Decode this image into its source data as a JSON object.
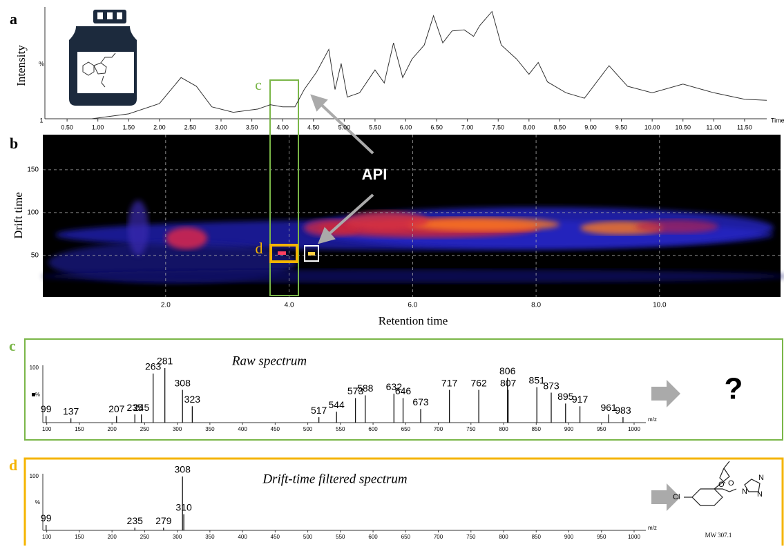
{
  "panel_a": {
    "label": "a",
    "y_label": "Intensity",
    "y_unit": "%",
    "y_bottom": "1",
    "x_unit": "Time",
    "xlim": [
      0.14,
      11.86
    ],
    "ylim": [
      0,
      100
    ],
    "xticks": [
      {
        "value": 0.5,
        "label": "0.50"
      },
      {
        "value": 1,
        "label": "1.00"
      },
      {
        "value": 1.5,
        "label": "1.50"
      },
      {
        "value": 2,
        "label": "2.00"
      },
      {
        "value": 2.5,
        "label": "2.50"
      },
      {
        "value": 3,
        "label": "3.00"
      },
      {
        "value": 3.5,
        "label": "3.50"
      },
      {
        "value": 4,
        "label": "4.00"
      },
      {
        "value": 4.5,
        "label": "4.50"
      },
      {
        "value": 5,
        "label": "5.00"
      },
      {
        "value": 5.5,
        "label": "5.50"
      },
      {
        "value": 6,
        "label": "6.00"
      },
      {
        "value": 6.5,
        "label": "6.50"
      },
      {
        "value": 7,
        "label": "7.00"
      },
      {
        "value": 7.5,
        "label": "7.50"
      },
      {
        "value": 8,
        "label": "8.00"
      },
      {
        "value": 8.5,
        "label": "8.50"
      },
      {
        "value": 9,
        "label": "9.00"
      },
      {
        "value": 9.5,
        "label": "9.50"
      },
      {
        "value": 10,
        "label": "10.00"
      },
      {
        "value": 10.5,
        "label": "10.50"
      },
      {
        "value": 11,
        "label": "11.00"
      },
      {
        "value": 11.5,
        "label": "11.50"
      }
    ],
    "x": [
      0.9,
      1.5,
      2.0,
      2.35,
      2.6,
      2.85,
      3.2,
      3.6,
      3.8,
      4.0,
      4.2,
      4.35,
      4.55,
      4.75,
      4.85,
      4.95,
      5.05,
      5.25,
      5.5,
      5.65,
      5.8,
      5.95,
      6.1,
      6.3,
      6.45,
      6.6,
      6.75,
      6.95,
      7.1,
      7.2,
      7.4,
      7.55,
      7.8,
      8.0,
      8.15,
      8.3,
      8.6,
      8.9,
      9.3,
      9.6,
      10.0,
      10.5,
      11.0,
      11.5,
      11.86
    ],
    "values": [
      0,
      4.5,
      14,
      38,
      30,
      11,
      6,
      9,
      13,
      11,
      11,
      27,
      43,
      64,
      27,
      51,
      20,
      24,
      45,
      33,
      70,
      38,
      55,
      68,
      95,
      70,
      81,
      82,
      76,
      86,
      99,
      68,
      55,
      41,
      52,
      34,
      24,
      19,
      49,
      30,
      24,
      32,
      24,
      18,
      17
    ]
  },
  "panel_b": {
    "label": "b",
    "y_label": "Drift time",
    "x_label": "Retention time",
    "xlim": [
      0.01,
      11.96
    ],
    "ylim": [
      1.6,
      191
    ],
    "xticks": [
      {
        "value": 2,
        "label": "2.0"
      },
      {
        "value": 4,
        "label": "4.0"
      },
      {
        "value": 6,
        "label": "6.0"
      },
      {
        "value": 8,
        "label": "8.0"
      },
      {
        "value": 10,
        "label": "10.0"
      }
    ],
    "yticks": [
      50,
      100,
      150
    ],
    "annotation": "API",
    "box_c_label": "c",
    "box_d_label": "d"
  },
  "panel_c": {
    "label": "c",
    "title": "Raw spectrum",
    "x_unit": "m/z",
    "y_top": "100",
    "y_unit": "%",
    "unknown": "?",
    "xlim": [
      94,
      1018
    ],
    "ylim": [
      0,
      100
    ],
    "xticks": [
      100,
      150,
      200,
      250,
      300,
      350,
      400,
      450,
      500,
      550,
      600,
      650,
      700,
      750,
      800,
      850,
      900,
      950,
      1000
    ],
    "mz": [
      99,
      137,
      207,
      235,
      245,
      263,
      281,
      308,
      323,
      517,
      544,
      573,
      588,
      632,
      646,
      673,
      717,
      762,
      806,
      807,
      851,
      873,
      895,
      917,
      961,
      983
    ],
    "intensity": [
      12,
      8,
      12,
      15,
      15,
      90,
      100,
      60,
      30,
      10,
      20,
      45,
      50,
      53,
      45,
      25,
      60,
      60,
      82,
      60,
      65,
      55,
      35,
      30,
      15,
      10
    ]
  },
  "panel_d": {
    "label": "d",
    "title": "Drift-time filtered spectrum",
    "x_unit": "m/z",
    "y_top": "100",
    "y_unit": "%",
    "xlim": [
      94,
      1018
    ],
    "ylim": [
      0,
      100
    ],
    "xticks": [
      100,
      150,
      200,
      250,
      300,
      350,
      400,
      450,
      500,
      550,
      600,
      650,
      700,
      750,
      800,
      850,
      900,
      950,
      1000
    ],
    "mz": [
      99,
      235,
      279,
      308,
      310
    ],
    "intensity": [
      10,
      5,
      5,
      100,
      30
    ],
    "structure_labels": [
      "O",
      "O",
      "N",
      "N",
      "N",
      "Cl"
    ],
    "molecular_weight": "MW 307.1"
  }
}
